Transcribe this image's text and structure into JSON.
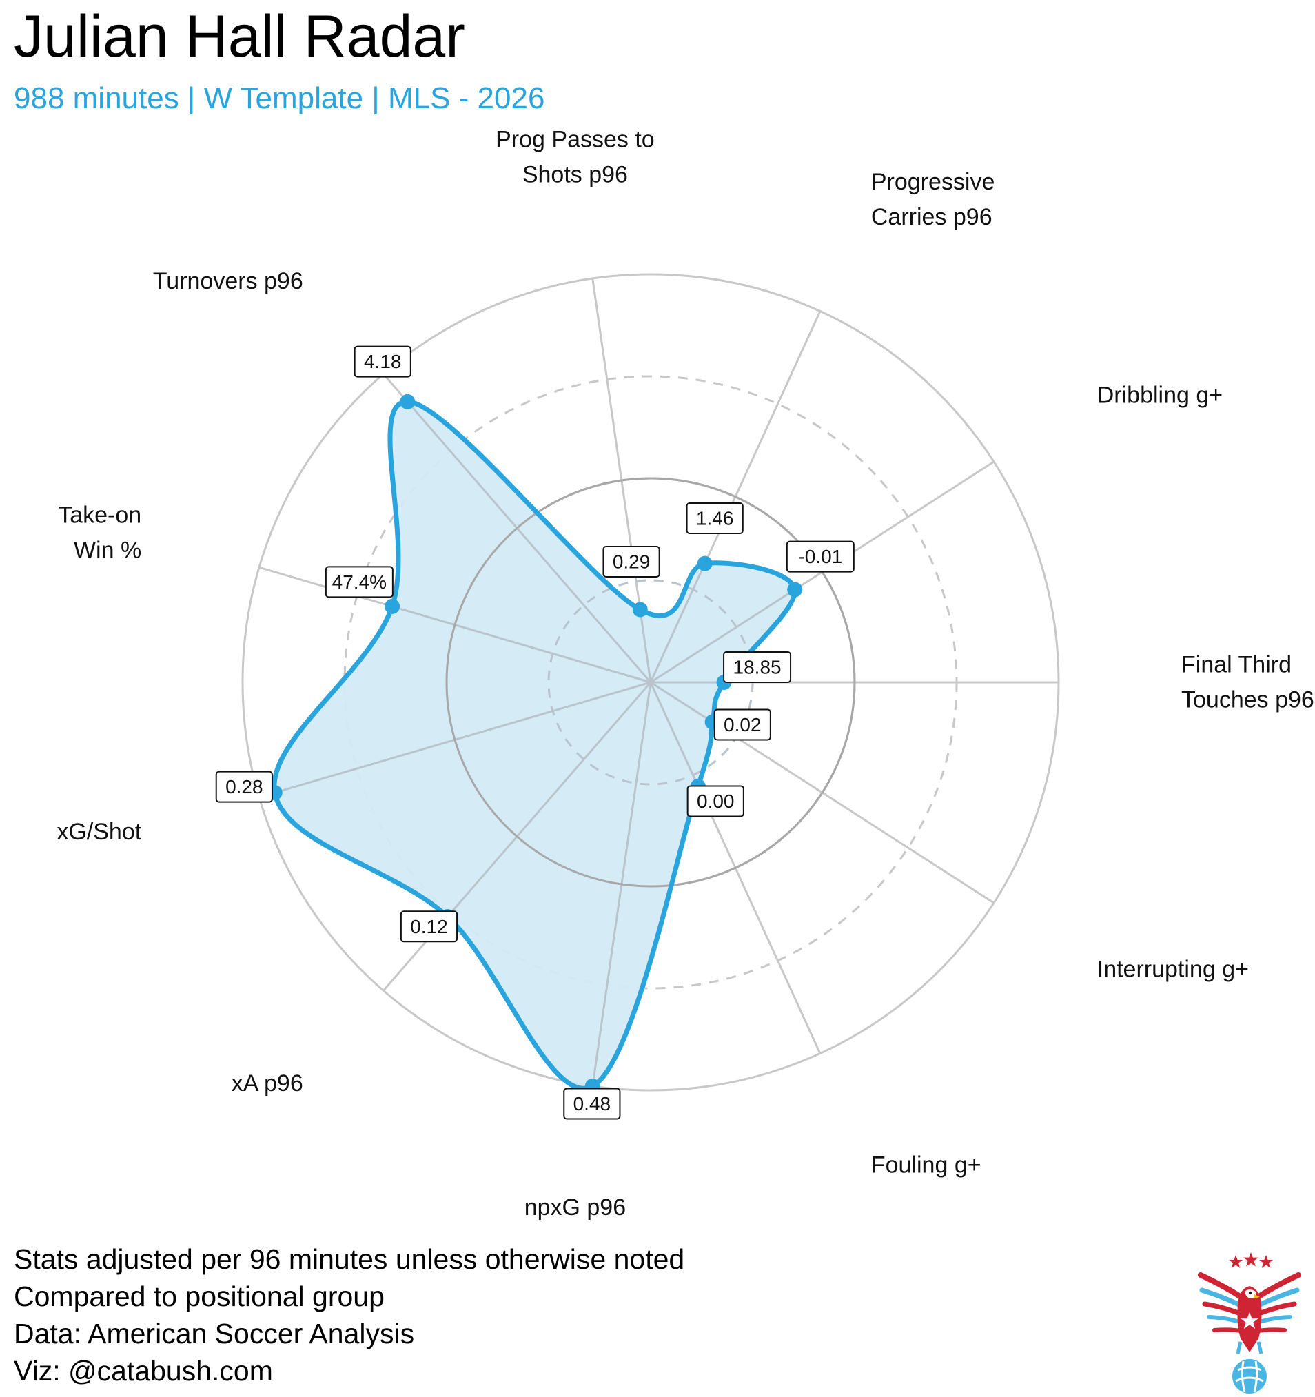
{
  "header": {
    "title": "Julian Hall Radar",
    "subtitle": "988 minutes | W Template | MLS - 2026"
  },
  "chart_data": {
    "type": "radar",
    "title": "Julian Hall Radar",
    "subtitle": "988 minutes | W Template | MLS - 2026",
    "metrics": [
      {
        "label": [
          "Final Third",
          "Touches p96"
        ],
        "value_label": "18.85",
        "radius_fraction": 0.18
      },
      {
        "label": [
          "Interrupting g+"
        ],
        "value_label": "0.02",
        "radius_fraction": 0.18
      },
      {
        "label": [
          "Fouling g+"
        ],
        "value_label": "0.00",
        "radius_fraction": 0.28
      },
      {
        "label": [
          "npxG p96"
        ],
        "value_label": "0.48",
        "radius_fraction": 1.0
      },
      {
        "label": [
          "xA p96"
        ],
        "value_label": "0.12",
        "radius_fraction": 0.76
      },
      {
        "label": [
          "xG/Shot"
        ],
        "value_label": "0.28",
        "radius_fraction": 0.96
      },
      {
        "label": [
          "Take-on",
          "Win %"
        ],
        "value_label": "47.4%",
        "radius_fraction": 0.66
      },
      {
        "label": [
          "Turnovers p96"
        ],
        "value_label": "4.18",
        "radius_fraction": 0.91
      },
      {
        "label": [
          "Prog Passes to",
          "Shots p96"
        ],
        "value_label": "0.29",
        "radius_fraction": 0.18
      },
      {
        "label": [
          "Progressive",
          "Carries p96"
        ],
        "value_label": "1.46",
        "radius_fraction": 0.32
      },
      {
        "label": [
          "Dribbling g+"
        ],
        "value_label": "-0.01",
        "radius_fraction": 0.42
      }
    ],
    "rings": [
      {
        "fraction": 0.25,
        "style": "dashed"
      },
      {
        "fraction": 0.5,
        "style": "solid"
      },
      {
        "fraction": 0.75,
        "style": "dashed"
      },
      {
        "fraction": 1.0,
        "style": "solid"
      }
    ],
    "colors": {
      "line": "#2aa4dc",
      "fill": "#d3ebf7",
      "grid": "#c8c8c8",
      "mid_ring": "#a8a8a8"
    }
  },
  "footer": {
    "line1": "Stats adjusted per 96 minutes unless otherwise noted",
    "line2": "Compared to positional group",
    "line3": "Data: American Soccer Analysis",
    "line4": "Viz: @catabush.com"
  },
  "logo": {
    "icon": "eagle-soccer-ball-logo",
    "colors": [
      "#cf2433",
      "#4ab5e3"
    ]
  }
}
